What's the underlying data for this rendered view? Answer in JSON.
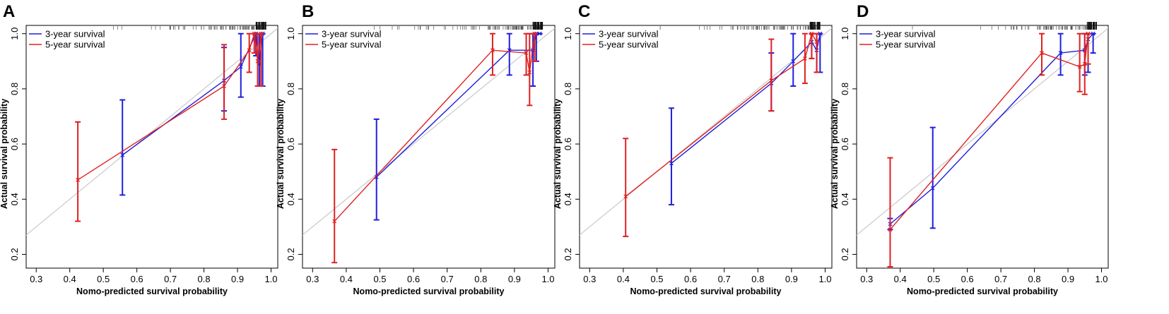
{
  "chart_data": [
    {
      "type": "line",
      "panel": "A",
      "xlabel": "Nomo-predicted survival probability",
      "ylabel": "Actual survival probability",
      "xlim": [
        0.27,
        1.02
      ],
      "ylim": [
        0.15,
        1.03
      ],
      "xticks": [
        "0.3",
        "0.4",
        "0.5",
        "0.6",
        "0.7",
        "0.8",
        "0.9",
        "1.0"
      ],
      "yticks": [
        "0.2",
        "0.4",
        "0.6",
        "0.8",
        "1.0"
      ],
      "series": [
        {
          "name": "3-year survival",
          "color": "#1f1fdc",
          "x": [
            0.557,
            0.86,
            0.91,
            0.955,
            0.965,
            0.975
          ],
          "y": [
            0.56,
            0.83,
            0.88,
            1.0,
            0.89,
            1.0
          ],
          "lower": [
            0.415,
            0.72,
            0.77,
            0.92,
            0.81,
            0.81
          ],
          "upper": [
            0.76,
            0.95,
            1.0,
            1.0,
            1.0,
            1.0
          ]
        },
        {
          "name": "5-year survival",
          "color": "#e02020",
          "x": [
            0.424,
            0.86,
            0.935,
            0.95,
            0.96,
            0.97
          ],
          "y": [
            0.47,
            0.81,
            0.94,
            1.0,
            0.9,
            1.0
          ],
          "lower": [
            0.32,
            0.69,
            0.86,
            0.93,
            0.81,
            0.81
          ],
          "upper": [
            0.68,
            0.96,
            1.0,
            1.0,
            1.0,
            1.0
          ]
        }
      ]
    },
    {
      "type": "line",
      "panel": "B",
      "xlabel": "Nomo-predicted survival probability",
      "ylabel": "Actual survival probability",
      "xlim": [
        0.27,
        1.02
      ],
      "ylim": [
        0.15,
        1.03
      ],
      "xticks": [
        "0.3",
        "0.4",
        "0.5",
        "0.6",
        "0.7",
        "0.8",
        "0.9",
        "1.0"
      ],
      "yticks": [
        "0.2",
        "0.4",
        "0.6",
        "0.8",
        "1.0"
      ],
      "series": [
        {
          "name": "3-year survival",
          "color": "#1f1fdc",
          "x": [
            0.49,
            0.885,
            0.955,
            0.965,
            0.975
          ],
          "y": [
            0.48,
            0.94,
            0.94,
            1.0,
            1.0
          ],
          "lower": [
            0.325,
            0.85,
            0.81,
            0.9,
            1.0
          ],
          "upper": [
            0.69,
            1.0,
            1.0,
            1.0,
            1.0
          ]
        },
        {
          "name": "5-year survival",
          "color": "#e02020",
          "x": [
            0.365,
            0.835,
            0.935,
            0.945,
            0.96
          ],
          "y": [
            0.32,
            0.94,
            0.93,
            0.86,
            1.0
          ],
          "lower": [
            0.17,
            0.85,
            0.85,
            0.74,
            0.9
          ],
          "upper": [
            0.58,
            1.0,
            1.0,
            1.0,
            1.0
          ]
        }
      ]
    },
    {
      "type": "line",
      "panel": "C",
      "xlabel": "Nomo-predicted survival probability",
      "ylabel": "Actual survival probability",
      "xlim": [
        0.27,
        1.02
      ],
      "ylim": [
        0.15,
        1.03
      ],
      "xticks": [
        "0.3",
        "0.4",
        "0.5",
        "0.6",
        "0.7",
        "0.8",
        "0.9",
        "1.0"
      ],
      "yticks": [
        "0.2",
        "0.4",
        "0.6",
        "0.8",
        "1.0"
      ],
      "series": [
        {
          "name": "3-year survival",
          "color": "#1f1fdc",
          "x": [
            0.543,
            0.84,
            0.905,
            0.96,
            0.975,
            0.985
          ],
          "y": [
            0.53,
            0.82,
            0.9,
            0.97,
            0.94,
            1.0
          ],
          "lower": [
            0.38,
            0.72,
            0.81,
            0.91,
            0.86,
            0.86
          ],
          "upper": [
            0.73,
            0.93,
            1.0,
            1.0,
            1.0,
            1.0
          ]
        },
        {
          "name": "5-year survival",
          "color": "#e02020",
          "x": [
            0.407,
            0.84,
            0.94,
            0.96,
            0.975
          ],
          "y": [
            0.41,
            0.83,
            0.91,
            1.0,
            0.97
          ],
          "lower": [
            0.265,
            0.72,
            0.82,
            0.91,
            0.86
          ],
          "upper": [
            0.62,
            0.98,
            1.0,
            1.0,
            1.0
          ]
        }
      ]
    },
    {
      "type": "line",
      "panel": "D",
      "xlabel": "Nomo-predicted survival probability",
      "ylabel": "Actual survival probability",
      "xlim": [
        0.27,
        1.02
      ],
      "ylim": [
        0.15,
        1.03
      ],
      "xticks": [
        "0.3",
        "0.4",
        "0.5",
        "0.6",
        "0.7",
        "0.8",
        "0.9",
        "1.0"
      ],
      "yticks": [
        "0.2",
        "0.4",
        "0.6",
        "0.8",
        "1.0"
      ],
      "series": [
        {
          "name": "3-year survival",
          "color": "#1f1fdc",
          "x": [
            0.37,
            0.497,
            0.878,
            0.95,
            0.96,
            0.975
          ],
          "y": [
            0.31,
            0.44,
            0.93,
            0.94,
            0.98,
            1.0
          ],
          "lower": [
            0.29,
            0.295,
            0.85,
            0.85,
            0.86,
            0.93
          ],
          "upper": [
            0.33,
            0.66,
            1.0,
            1.0,
            1.0,
            1.0
          ]
        },
        {
          "name": "5-year survival",
          "color": "#e02020",
          "x": [
            0.37,
            0.822,
            0.935,
            0.95,
            0.96
          ],
          "y": [
            0.29,
            0.93,
            0.88,
            0.89,
            1.0
          ],
          "lower": [
            0.155,
            0.85,
            0.79,
            0.78,
            0.89
          ],
          "upper": [
            0.55,
            1.0,
            1.0,
            1.0,
            1.0
          ]
        }
      ]
    }
  ]
}
